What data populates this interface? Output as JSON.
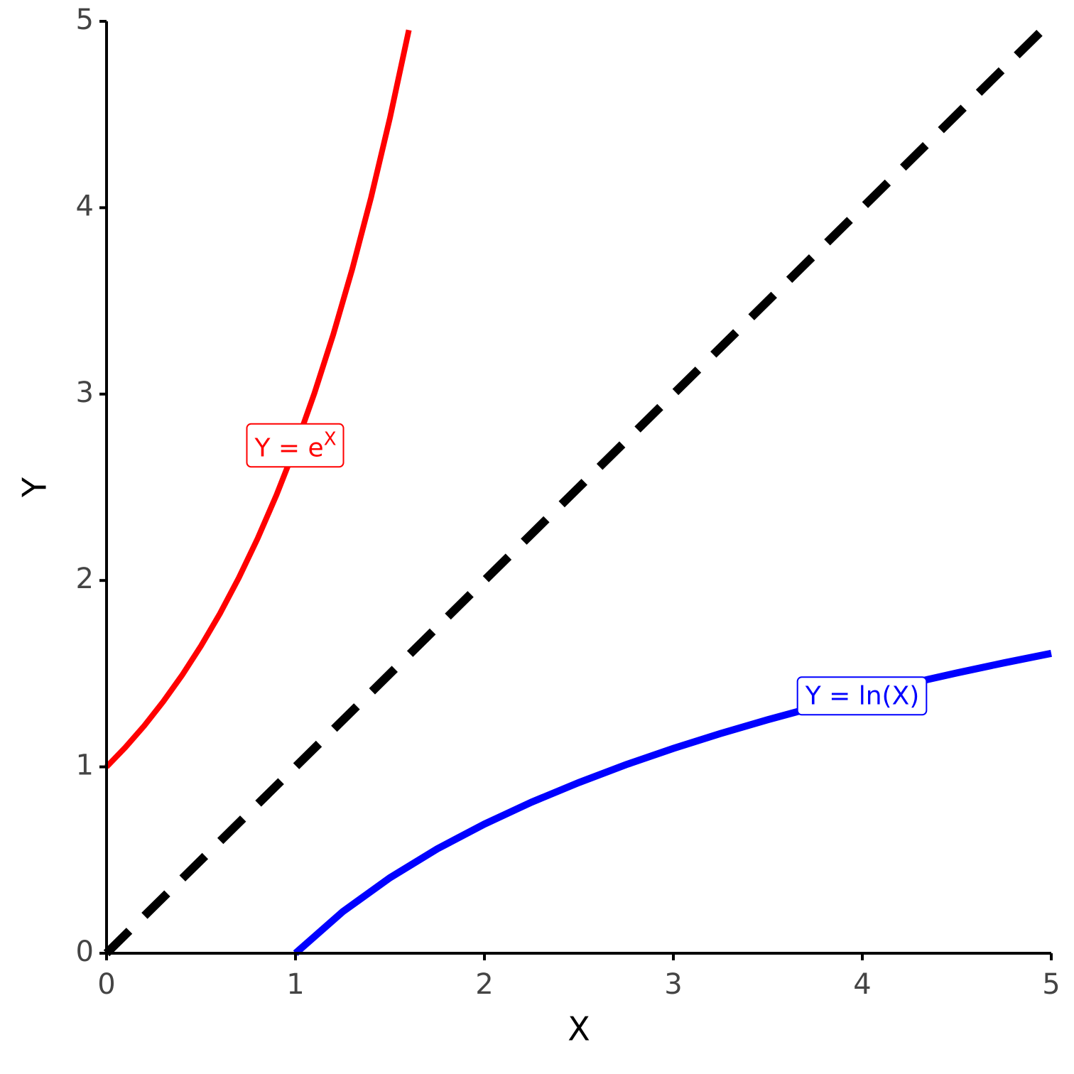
{
  "chart_data": {
    "type": "line",
    "xlabel": "X",
    "ylabel": "Y",
    "xlim": [
      0,
      5
    ],
    "ylim": [
      0,
      5
    ],
    "xticks": [
      0,
      1,
      2,
      3,
      4,
      5
    ],
    "yticks": [
      0,
      1,
      2,
      3,
      4,
      5
    ],
    "grid": false,
    "series": [
      {
        "color": "#ff0000",
        "linestyle": "solid",
        "x": [
          0,
          0.1,
          0.2,
          0.3,
          0.4,
          0.5,
          0.6,
          0.7,
          0.8,
          0.9,
          1,
          1.1,
          1.2,
          1.3,
          1.4,
          1.5,
          1.6
        ],
        "values": [
          1,
          1.105,
          1.221,
          1.35,
          1.492,
          1.649,
          1.822,
          2.014,
          2.226,
          2.46,
          2.718,
          3.004,
          3.32,
          3.669,
          4.055,
          4.482,
          4.953
        ]
      },
      {
        "color": "#000000",
        "linestyle": "dashed",
        "x": [
          0,
          5
        ],
        "values": [
          0,
          5
        ]
      },
      {
        "color": "#0000ff",
        "linestyle": "solid",
        "x": [
          1,
          1.25,
          1.5,
          1.75,
          2,
          2.25,
          2.5,
          2.75,
          3,
          3.25,
          3.5,
          3.75,
          4,
          4.25,
          4.5,
          4.75,
          5
        ],
        "values": [
          0,
          0.223,
          0.405,
          0.56,
          0.693,
          0.811,
          0.916,
          1.012,
          1.099,
          1.179,
          1.253,
          1.322,
          1.386,
          1.447,
          1.504,
          1.558,
          1.609
        ]
      }
    ],
    "annotations": [
      {
        "text": "Y = e",
        "superscript": "X",
        "x": 1,
        "y": 2.72,
        "color": "#ff0000"
      },
      {
        "text": "Y = ln(X)",
        "x": 4,
        "y": 1.39,
        "color": "#0000ff"
      }
    ]
  }
}
